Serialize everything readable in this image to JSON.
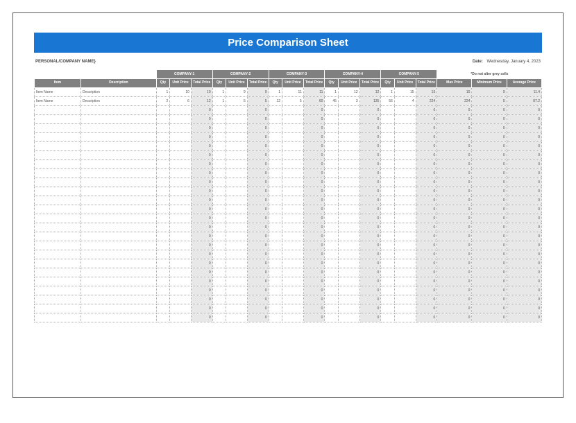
{
  "title": "Price Comparison Sheet",
  "company_placeholder": "PERSONAL/COMPANY NAME}",
  "date_label": "Date:",
  "date_value": "Wednesday, January 4, 2023",
  "companies": [
    "COMPANY-1",
    "COMPANY-2",
    "COMPANY-3",
    "COMPANY-4",
    "COMPANY-5"
  ],
  "note": "*Do not alter grey cells",
  "col_headers": {
    "item": "Item",
    "description": "Description",
    "qty": "Qty",
    "unit_price": "Unit Price",
    "total_price": "Total Price",
    "max_price": "Max Price",
    "min_price": "Minimum Price",
    "avg_price": "Average Price"
  },
  "rows": [
    {
      "item": "Item Name",
      "desc": "Description",
      "c": [
        {
          "q": 1,
          "u": 10,
          "t": 10
        },
        {
          "q": 1,
          "u": 9,
          "t": 9
        },
        {
          "q": 1,
          "u": 11,
          "t": 11
        },
        {
          "q": 1,
          "u": 12,
          "t": 12
        },
        {
          "q": 1,
          "u": 15,
          "t": 15
        }
      ],
      "max": 15,
      "min": 9,
      "avg": 11.4
    },
    {
      "item": "Item Name",
      "desc": "Description",
      "c": [
        {
          "q": 2,
          "u": 6,
          "t": 12
        },
        {
          "q": 1,
          "u": 5,
          "t": 5
        },
        {
          "q": 12,
          "u": 5,
          "t": 60
        },
        {
          "q": 45,
          "u": 3,
          "t": 135
        },
        {
          "q": 56,
          "u": 4,
          "t": 224
        }
      ],
      "max": 224,
      "min": 5,
      "avg": 87.2
    }
  ],
  "empty_row_count": 24,
  "colors": {
    "title_bg": "#1976d2",
    "title_fg": "#ffffff",
    "header_bg": "#808080",
    "header_fg": "#ffffff",
    "summary_bg": "#e8e8e8",
    "border": "#aaaaaa",
    "frame_border": "#555555"
  }
}
